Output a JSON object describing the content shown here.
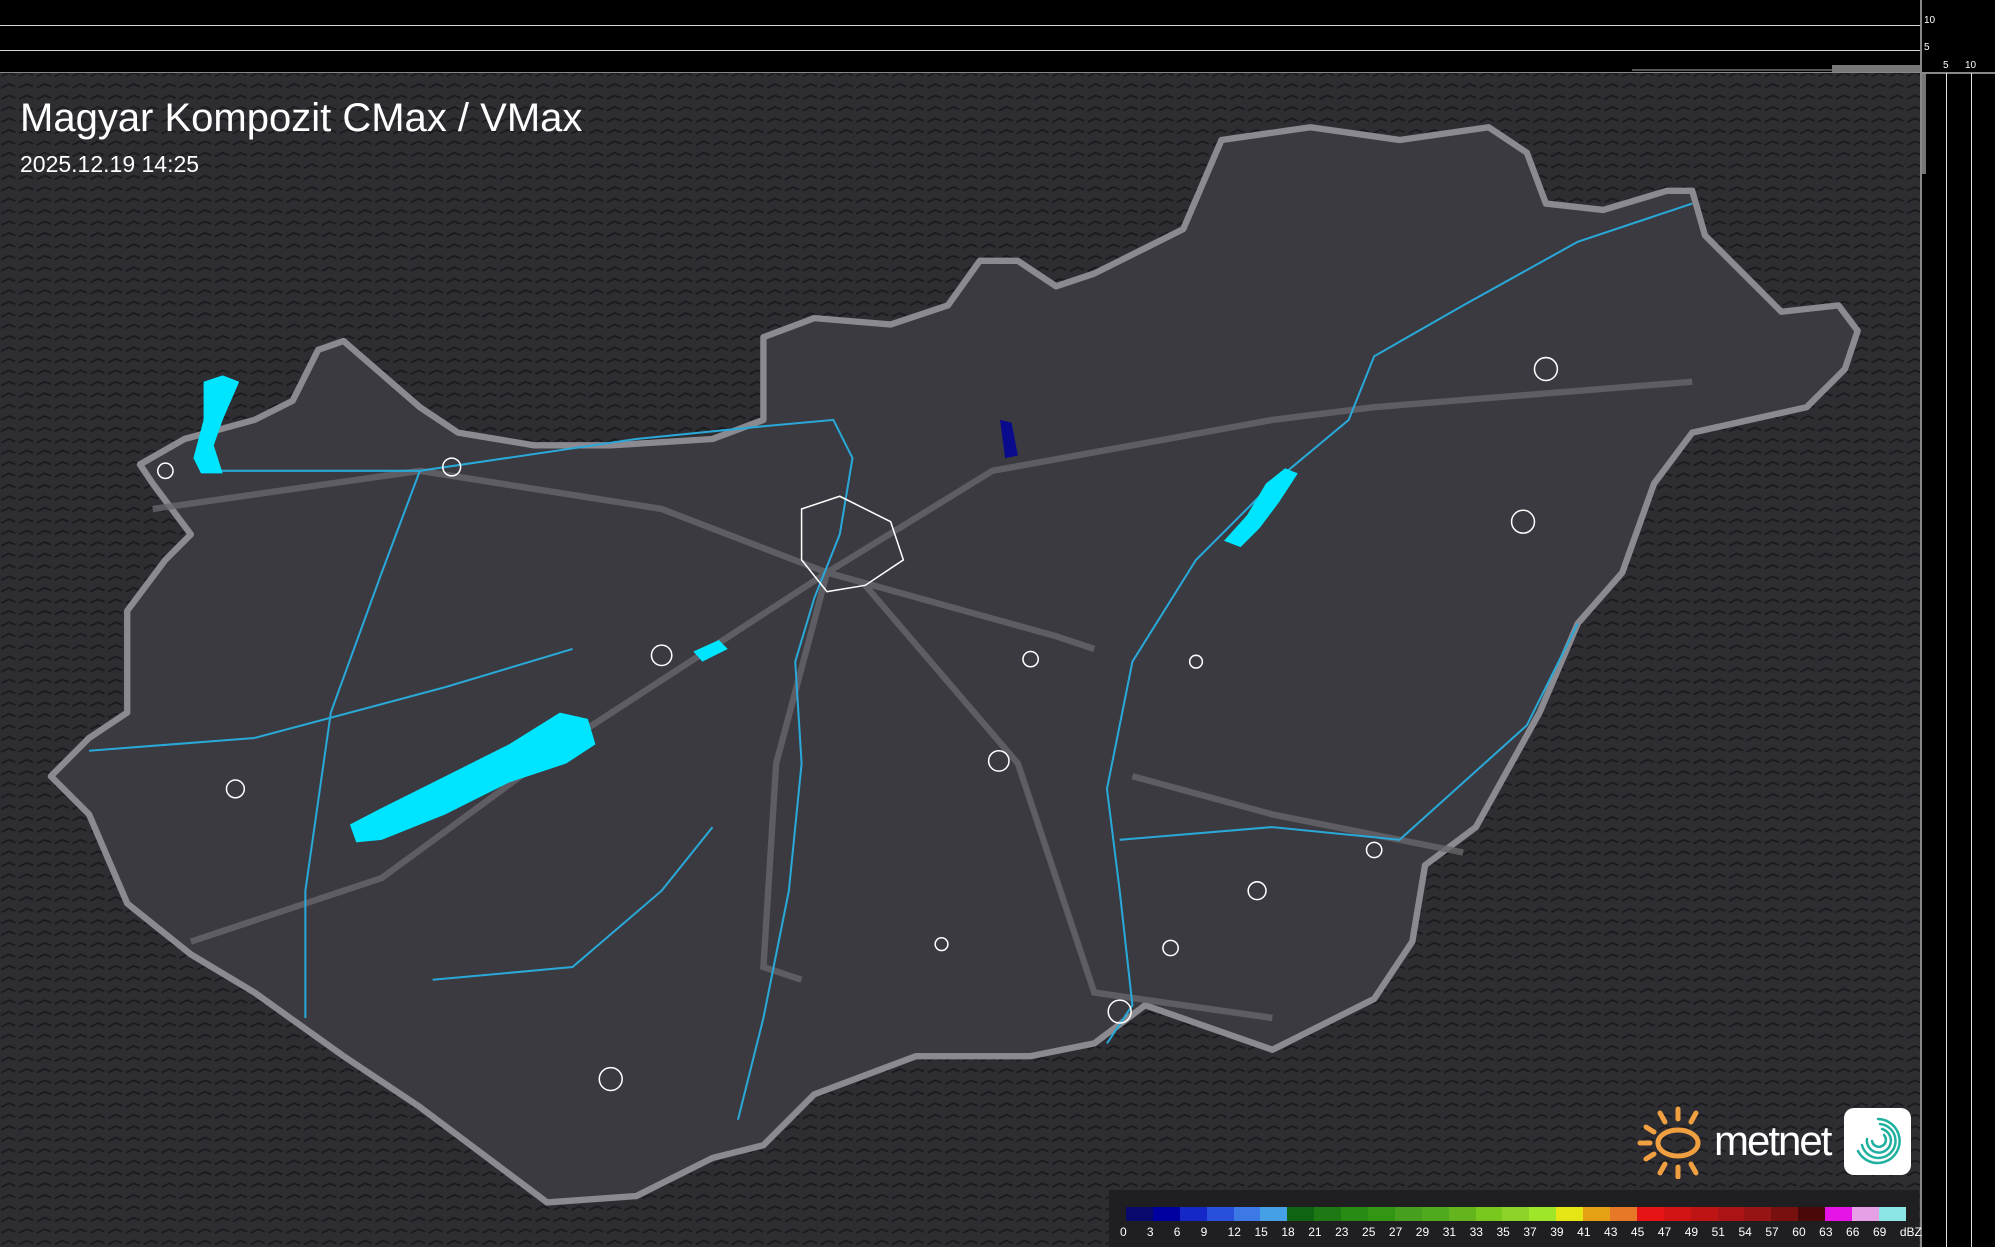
{
  "header": {
    "title": "Magyar Kompozit CMax / VMax",
    "timestamp": "2025.12.19 14:25"
  },
  "profile_axes": {
    "top_labels": [
      "10",
      "5"
    ],
    "right_labels": [
      "5",
      "10"
    ]
  },
  "legend": {
    "unit": "dBZ",
    "labels": [
      "0",
      "3",
      "6",
      "9",
      "12",
      "15",
      "18",
      "21",
      "23",
      "25",
      "27",
      "29",
      "31",
      "33",
      "35",
      "37",
      "39",
      "41",
      "43",
      "45",
      "47",
      "49",
      "51",
      "54",
      "57",
      "60",
      "63",
      "66",
      "69"
    ],
    "colors": [
      "#0a0a6e",
      "#0000a0",
      "#1428c8",
      "#2850dc",
      "#3c78e6",
      "#46a0e6",
      "#0f6414",
      "#1e7814",
      "#288c14",
      "#329614",
      "#46a01e",
      "#50aa1e",
      "#64b41e",
      "#78c81e",
      "#8cd228",
      "#a0e628",
      "#e6e614",
      "#e6a014",
      "#e67828",
      "#e61414",
      "#d21414",
      "#be1414",
      "#aa1414",
      "#961414",
      "#781010",
      "#4a0808",
      "#e614e6",
      "#e6a0e6",
      "#8ce6e6"
    ]
  },
  "logo": {
    "text": "metnet"
  },
  "colors": {
    "water": "#00e5ff",
    "river": "#2aa8d8",
    "border": "#8a8a90",
    "echo": "#0a0a8c"
  }
}
